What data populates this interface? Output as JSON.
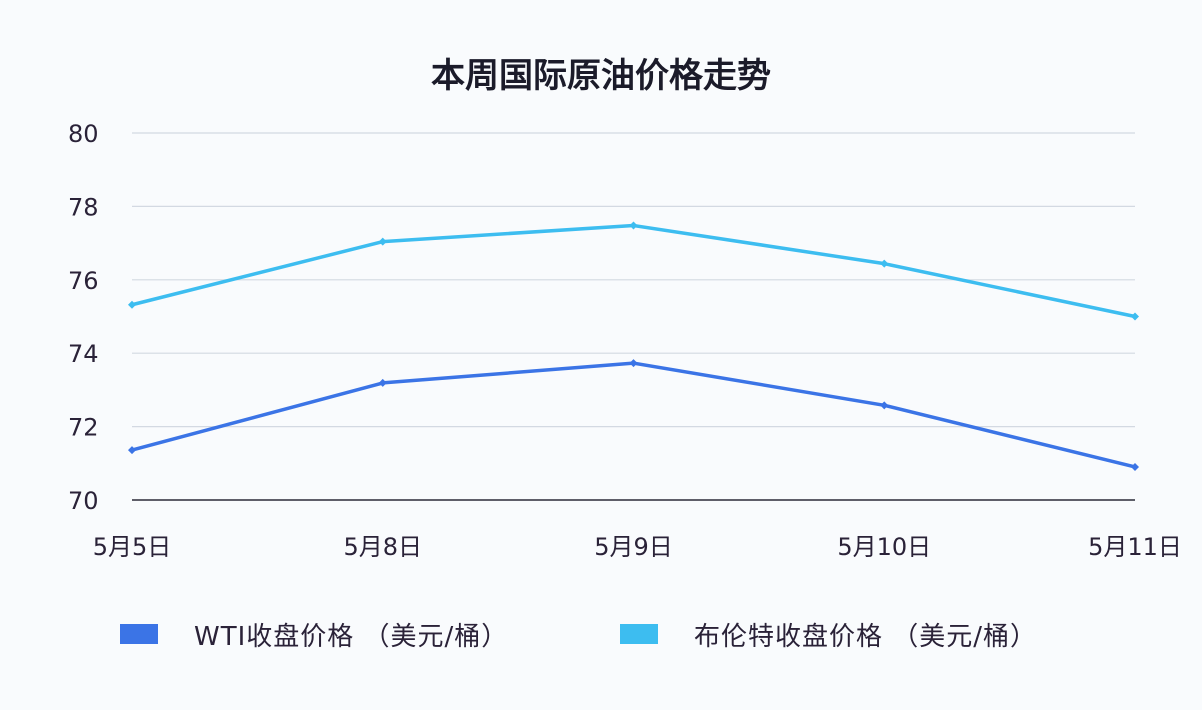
{
  "title": "本周国际原油价格走势",
  "chart_data": {
    "type": "line",
    "title": "本周国际原油价格走势",
    "xlabel": "",
    "ylabel": "",
    "categories": [
      "5月5日",
      "5月8日",
      "5月9日",
      "5月10日",
      "5月11日"
    ],
    "series": [
      {
        "name": "WTI收盘价格 （美元/桶）",
        "color": "#3b74e6",
        "values": [
          71.36,
          73.19,
          73.73,
          72.58,
          70.9
        ]
      },
      {
        "name": "布伦特收盘价格 （美元/桶）",
        "color": "#3dbdf0",
        "values": [
          75.32,
          77.04,
          77.48,
          76.44,
          75.0
        ]
      }
    ],
    "ylim": [
      70,
      80
    ],
    "yticks": [
      "70",
      "72",
      "74",
      "76",
      "78",
      "80"
    ],
    "grid": true,
    "legend_position": "bottom"
  },
  "legend": {
    "items": [
      {
        "label": "WTI收盘价格 （美元/桶）",
        "color": "#3b74e6"
      },
      {
        "label": "布伦特收盘价格 （美元/桶）",
        "color": "#3dbdf0"
      }
    ]
  }
}
